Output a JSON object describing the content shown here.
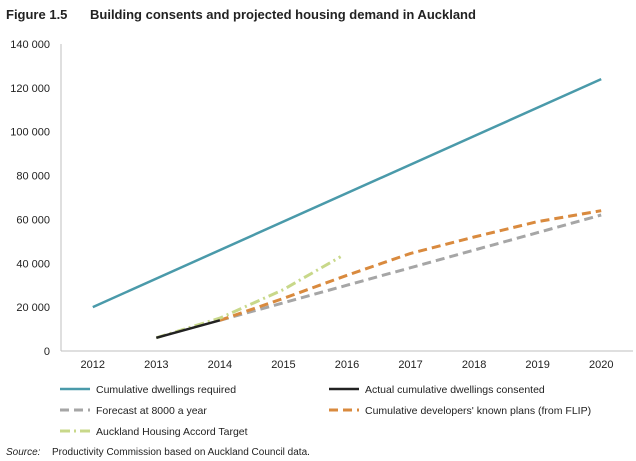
{
  "figure": {
    "number": "Figure 1.5",
    "title": "Building consents and projected housing demand in Auckland"
  },
  "source": {
    "label": "Source:",
    "text": "Productivity Commission based on Auckland Council data."
  },
  "chart_data": {
    "type": "line",
    "title": "Building consents and projected housing demand in Auckland",
    "xlabel": "",
    "ylabel": "",
    "xlim": [
      2011.5,
      2020.5
    ],
    "ylim": [
      0,
      140000
    ],
    "x_ticks": [
      2012,
      2013,
      2014,
      2015,
      2016,
      2017,
      2018,
      2019,
      2020
    ],
    "x_tick_labels": [
      "2012",
      "2013",
      "2014",
      "2015",
      "2016",
      "2017",
      "2018",
      "2019",
      "2020"
    ],
    "y_ticks": [
      0,
      20000,
      40000,
      60000,
      80000,
      100000,
      120000,
      140000
    ],
    "y_tick_labels": [
      "0",
      "20 000",
      "40 000",
      "60 000",
      "80 000",
      "100 000",
      "120 000",
      "140 000"
    ],
    "grid": false,
    "legend_position": "bottom",
    "series": [
      {
        "name": "Cumulative dwellings required",
        "color": "#4a9aaa",
        "style": "solid",
        "x": [
          2012,
          2020
        ],
        "y": [
          20000,
          124000
        ]
      },
      {
        "name": "Actual cumulative dwellings consented",
        "color": "#222222",
        "style": "solid",
        "x": [
          2013,
          2013.5,
          2014
        ],
        "y": [
          6000,
          10000,
          14000
        ]
      },
      {
        "name": "Forecast at 8000 a year",
        "color": "#a6a6a6",
        "style": "dashed",
        "x": [
          2014,
          2015,
          2016,
          2017,
          2018,
          2019,
          2020
        ],
        "y": [
          14000,
          22000,
          30000,
          38000,
          46000,
          54000,
          62000
        ]
      },
      {
        "name": "Cumulative developers' known plans (from FLIP)",
        "color": "#d98a3e",
        "style": "dashed",
        "x": [
          2014,
          2015,
          2016,
          2017,
          2018,
          2019,
          2020
        ],
        "y": [
          14000,
          24000,
          34500,
          44500,
          52000,
          59000,
          64000
        ]
      },
      {
        "name": "Auckland Housing Accord Target",
        "color": "#c8d88a",
        "style": "dashdot",
        "x": [
          2013,
          2014,
          2015,
          2015.9
        ],
        "y": [
          6000,
          15000,
          28000,
          43000
        ]
      }
    ]
  }
}
